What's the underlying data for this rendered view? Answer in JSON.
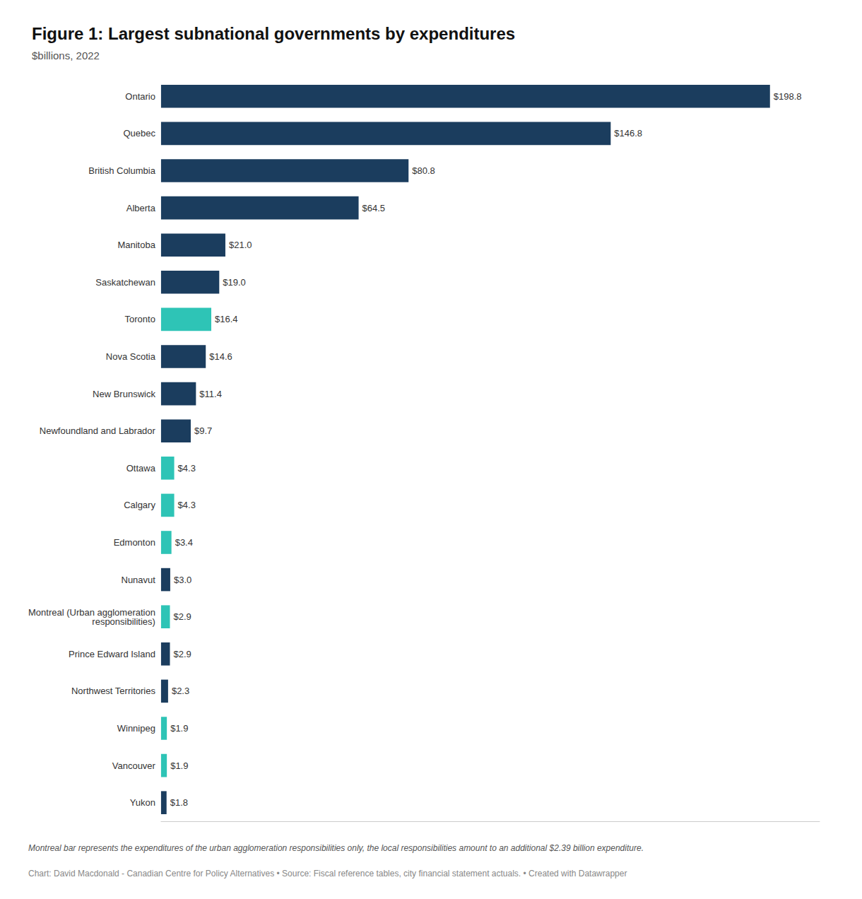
{
  "chart_data": {
    "type": "bar",
    "orientation": "horizontal",
    "title": "Figure 1: Largest subnational governments by expenditures",
    "subtitle": "$billions, 2022",
    "categories": [
      "Ontario",
      "Quebec",
      "British Columbia",
      "Alberta",
      "Manitoba",
      "Saskatchewan",
      "Toronto",
      "Nova Scotia",
      "New Brunswick",
      "Newfoundland and Labrador",
      "Ottawa",
      "Calgary",
      "Edmonton",
      "Nunavut",
      "Montreal (Urban agglomeration\nresponsibilities)",
      "Prince Edward Island",
      "Northwest Territories",
      "Winnipeg",
      "Vancouver",
      "Yukon"
    ],
    "values": [
      198.8,
      146.8,
      80.8,
      64.5,
      21.0,
      19.0,
      16.4,
      14.6,
      11.4,
      9.7,
      4.3,
      4.3,
      3.4,
      3.0,
      2.9,
      2.9,
      2.3,
      1.9,
      1.9,
      1.8
    ],
    "value_labels": [
      "$198.8",
      "$146.8",
      "$80.8",
      "$64.5",
      "$21.0",
      "$19.0",
      "$16.4",
      "$14.6",
      "$11.4",
      "$9.7",
      "$4.3",
      "$4.3",
      "$3.4",
      "$3.0",
      "$2.9",
      "$2.9",
      "$2.3",
      "$1.9",
      "$1.9",
      "$1.8"
    ],
    "colors": [
      "#1b3d5e",
      "#1b3d5e",
      "#1b3d5e",
      "#1b3d5e",
      "#1b3d5e",
      "#1b3d5e",
      "#2ec4b6",
      "#1b3d5e",
      "#1b3d5e",
      "#1b3d5e",
      "#2ec4b6",
      "#2ec4b6",
      "#2ec4b6",
      "#1b3d5e",
      "#2ec4b6",
      "#1b3d5e",
      "#1b3d5e",
      "#2ec4b6",
      "#2ec4b6",
      "#1b3d5e"
    ],
    "xlim": [
      0,
      215
    ],
    "data_labels": true,
    "tick_labels": "y",
    "grid": false,
    "annotations": [
      "Montreal bar represents the expenditures of the urban agglomeration responsibilities only, the local responsibilities amount to an additional $2.39 billion expenditure.",
      "Chart: David Macdonald - Canadian Centre for Policy Alternatives • Source: Fiscal reference tables, city financial statement actuals. • Created with Datawrapper"
    ]
  }
}
